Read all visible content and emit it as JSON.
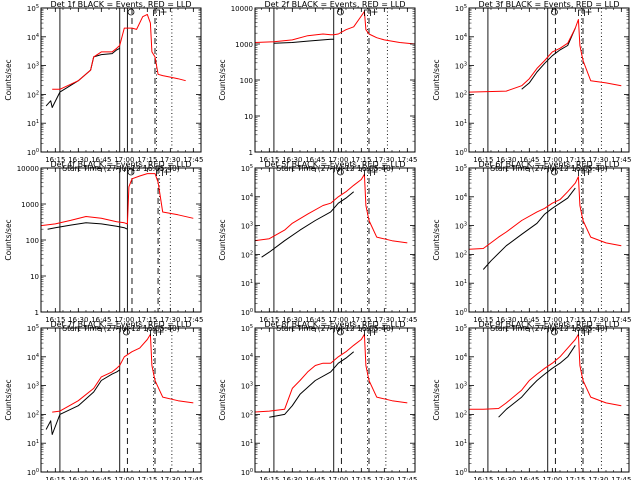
{
  "figure": {
    "colors": {
      "events": "#000000",
      "lld": "#ff0000",
      "axes": "#000000",
      "background": "#ffffff"
    },
    "common": {
      "xlabel": "Start Time (27-Jul-12 16:05:40)",
      "ylabel": "Counts/sec",
      "x_ticks": [
        "16:15",
        "16:30",
        "16:45",
        "17:00",
        "17:15",
        "17:30",
        "17:45"
      ],
      "x_range": [
        "16:05:40",
        "17:50"
      ],
      "ylog": true,
      "grid": false,
      "markers": [
        "o",
        "⊓",
        "+"
      ]
    }
  },
  "chart_data": [
    {
      "type": "line",
      "title": "Det 1f BLACK = Events, RED = LLD",
      "xlabel": "Start Time (27-Jul-12 16:05:40)",
      "ylabel": "Counts/sec",
      "y_ticks": [
        "10^0",
        "10^1",
        "10^2",
        "10^3",
        "10^4",
        "10^5"
      ],
      "ylim": [
        1,
        100000
      ],
      "vlines_solid": [
        "16:18",
        "16:57",
        "17:02"
      ],
      "vlines_dashed": [
        "17:05",
        "17:20"
      ],
      "vlines_dotted": [
        "17:21",
        "17:31"
      ],
      "series": [
        {
          "name": "Events",
          "color": "#000000",
          "x": [
            "16:09",
            "16:12",
            "16:13",
            "16:18",
            "16:30",
            "16:38",
            "16:40",
            "16:45",
            "16:52",
            "16:55",
            "16:57"
          ],
          "y": [
            40,
            60,
            35,
            120,
            300,
            700,
            2000,
            2400,
            2600,
            3500,
            4000
          ]
        },
        {
          "name": "LLD",
          "color": "#ff0000",
          "x": [
            "16:13",
            "16:18",
            "16:30",
            "16:38",
            "16:40",
            "16:45",
            "16:52",
            "16:55",
            "16:57",
            "17:00",
            "17:05",
            "17:08",
            "17:12",
            "17:15",
            "17:17",
            "17:18",
            "17:20",
            "17:22",
            "17:25",
            "17:30",
            "17:35",
            "17:40"
          ],
          "y": [
            150,
            150,
            300,
            700,
            2000,
            3000,
            3000,
            4000,
            5000,
            20000,
            20000,
            18000,
            50000,
            60000,
            30000,
            3000,
            2000,
            500,
            450,
            400,
            350,
            300
          ]
        }
      ]
    },
    {
      "type": "line",
      "title": "Det 2f BLACK = Events, RED = LLD",
      "xlabel": "Start Time (27-Jul-12 16:05:40)",
      "ylabel": "Counts/sec",
      "y_ticks": [
        "1",
        "10",
        "100",
        "1000",
        "10000"
      ],
      "ylim": [
        1,
        10000
      ],
      "vlines_solid": [
        "16:18",
        "16:57"
      ],
      "vlines_dashed": [
        "17:02",
        "17:20"
      ],
      "vlines_dotted": [
        "17:19",
        "17:32"
      ],
      "series": [
        {
          "name": "Events",
          "color": "#000000",
          "x": [
            "16:18",
            "16:30",
            "16:40",
            "16:50",
            "16:55",
            "16:57"
          ],
          "y": [
            1050,
            1100,
            1200,
            1300,
            1350,
            1350
          ]
        },
        {
          "name": "LLD",
          "color": "#ff0000",
          "x": [
            "16:05",
            "16:18",
            "16:30",
            "16:40",
            "16:50",
            "16:55",
            "16:57",
            "17:00",
            "17:05",
            "17:10",
            "17:15",
            "17:17",
            "17:18",
            "17:20",
            "17:25",
            "17:30",
            "17:40",
            "17:50"
          ],
          "y": [
            1100,
            1150,
            1300,
            1700,
            1900,
            1800,
            1800,
            1900,
            2500,
            3000,
            6000,
            8000,
            2500,
            1900,
            1500,
            1300,
            1100,
            1000
          ]
        }
      ]
    },
    {
      "type": "line",
      "title": "Det 3f BLACK = Events, RED = LLD",
      "xlabel": "Start Time (27-Jul-12 16:05:40)",
      "ylabel": "Counts/sec",
      "y_ticks": [
        "10^0",
        "10^1",
        "10^2",
        "10^3",
        "10^4",
        "10^5"
      ],
      "ylim": [
        1,
        100000
      ],
      "vlines_solid": [
        "16:18",
        "16:57"
      ],
      "vlines_dashed": [
        "17:02",
        "17:20"
      ],
      "vlines_dotted": [
        "17:19",
        "17:32"
      ],
      "series": [
        {
          "name": "Events",
          "color": "#000000",
          "x": [
            "16:40",
            "16:45",
            "16:50",
            "16:55",
            "17:00",
            "17:05",
            "17:10",
            "17:15"
          ],
          "y": [
            150,
            250,
            600,
            1200,
            2200,
            3500,
            5000,
            20000
          ]
        },
        {
          "name": "LLD",
          "color": "#ff0000",
          "x": [
            "16:05",
            "16:30",
            "16:40",
            "16:45",
            "16:50",
            "16:55",
            "17:00",
            "17:05",
            "17:10",
            "17:15",
            "17:17",
            "17:18",
            "17:20",
            "17:25",
            "17:35",
            "17:45"
          ],
          "y": [
            120,
            130,
            200,
            350,
            800,
            1500,
            3000,
            4000,
            6000,
            20000,
            40000,
            5000,
            1500,
            300,
            250,
            200
          ]
        }
      ]
    },
    {
      "type": "line",
      "title": "Det 4f BLACK = Events, RED = LLD",
      "xlabel": "Start Time (27-Jul-12 16:05:40)",
      "ylabel": "Counts/sec",
      "y_ticks": [
        "1",
        "10",
        "100",
        "1000",
        "10000"
      ],
      "ylim": [
        1,
        10000
      ],
      "vlines_solid": [
        "16:18",
        "16:57",
        "17:02"
      ],
      "vlines_dashed": [
        "17:05",
        "17:22"
      ],
      "vlines_dotted": [
        "17:23",
        "17:30"
      ],
      "series": [
        {
          "name": "Events",
          "color": "#000000",
          "x": [
            "16:10",
            "16:15",
            "16:25",
            "16:35",
            "16:45",
            "16:55",
            "17:00",
            "17:02"
          ],
          "y": [
            200,
            220,
            260,
            300,
            280,
            240,
            220,
            200
          ]
        },
        {
          "name": "LLD",
          "color": "#ff0000",
          "x": [
            "16:05",
            "16:15",
            "16:25",
            "16:35",
            "16:45",
            "16:55",
            "17:00",
            "17:02",
            "17:03",
            "17:05",
            "17:10",
            "17:15",
            "17:20",
            "17:22",
            "17:25",
            "17:35",
            "17:45"
          ],
          "y": [
            250,
            280,
            350,
            450,
            400,
            320,
            300,
            280,
            3000,
            5000,
            6000,
            7000,
            7000,
            4000,
            600,
            500,
            400
          ]
        }
      ]
    },
    {
      "type": "line",
      "title": "Det 5f BLACK = Events, RED = LLD",
      "xlabel": "Start Time (27-Jul-12 16:05:40)",
      "ylabel": "Counts/sec",
      "y_ticks": [
        "10^0",
        "10^1",
        "10^2",
        "10^3",
        "10^4",
        "10^5"
      ],
      "ylim": [
        1,
        100000
      ],
      "vlines_solid": [
        "16:18",
        "16:57"
      ],
      "vlines_dashed": [
        "17:02",
        "17:20"
      ],
      "vlines_dotted": [
        "17:19",
        "17:31"
      ],
      "series": [
        {
          "name": "Events",
          "color": "#000000",
          "x": [
            "16:10",
            "16:15",
            "16:25",
            "16:35",
            "16:45",
            "16:55",
            "17:00",
            "17:05",
            "17:10"
          ],
          "y": [
            80,
            120,
            300,
            700,
            1500,
            3000,
            6000,
            9000,
            15000
          ]
        },
        {
          "name": "LLD",
          "color": "#ff0000",
          "x": [
            "16:05",
            "16:15",
            "16:25",
            "16:30",
            "16:40",
            "16:50",
            "16:55",
            "17:00",
            "17:05",
            "17:10",
            "17:15",
            "17:17",
            "17:18",
            "17:20",
            "17:25",
            "17:35",
            "17:45"
          ],
          "y": [
            300,
            350,
            700,
            1200,
            2500,
            5000,
            6000,
            10000,
            15000,
            25000,
            40000,
            60000,
            5000,
            1500,
            400,
            300,
            250
          ]
        }
      ]
    },
    {
      "type": "line",
      "title": "Det 6f BLACK = Events, RED = LLD",
      "xlabel": "Start Time (27-Jul-12 16:05:40)",
      "ylabel": "Counts/sec",
      "y_ticks": [
        "10^0",
        "10^1",
        "10^2",
        "10^3",
        "10^4",
        "10^5"
      ],
      "ylim": [
        1,
        100000
      ],
      "vlines_solid": [
        "16:18",
        "16:57"
      ],
      "vlines_dashed": [
        "17:02",
        "17:20"
      ],
      "vlines_dotted": [
        "17:19",
        "17:32"
      ],
      "series": [
        {
          "name": "Events",
          "color": "#000000",
          "x": [
            "16:15",
            "16:20",
            "16:30",
            "16:40",
            "16:50",
            "16:55",
            "17:00",
            "17:05",
            "17:10",
            "17:15"
          ],
          "y": [
            30,
            60,
            200,
            500,
            1200,
            2500,
            4000,
            6000,
            9000,
            20000
          ]
        },
        {
          "name": "LLD",
          "color": "#ff0000",
          "x": [
            "16:05",
            "16:15",
            "16:25",
            "16:30",
            "16:40",
            "16:50",
            "16:55",
            "17:00",
            "17:05",
            "17:10",
            "17:15",
            "17:17",
            "17:18",
            "17:20",
            "17:25",
            "17:35",
            "17:45"
          ],
          "y": [
            150,
            160,
            400,
            600,
            1500,
            3000,
            4000,
            6000,
            8000,
            15000,
            30000,
            50000,
            5000,
            1500,
            400,
            250,
            200
          ]
        }
      ]
    },
    {
      "type": "line",
      "title": "Det 7f BLACK = Events, RED = LLD",
      "xlabel": "Start Time (27-Jul-12 16:05:40)",
      "ylabel": "Counts/sec",
      "y_ticks": [
        "10^0",
        "10^1",
        "10^2",
        "10^3",
        "10^4",
        "10^5"
      ],
      "ylim": [
        1,
        100000
      ],
      "vlines_solid": [
        "16:18",
        "16:57"
      ],
      "vlines_dashed": [
        "17:02",
        "17:20"
      ],
      "vlines_dotted": [
        "17:19",
        "17:31"
      ],
      "series": [
        {
          "name": "Events",
          "color": "#000000",
          "x": [
            "16:09",
            "16:12",
            "16:13",
            "16:18",
            "16:30",
            "16:40",
            "16:45",
            "16:52",
            "16:55",
            "16:57"
          ],
          "y": [
            30,
            60,
            20,
            100,
            200,
            600,
            1500,
            2500,
            3000,
            3500
          ]
        },
        {
          "name": "LLD",
          "color": "#ff0000",
          "x": [
            "16:13",
            "16:18",
            "16:30",
            "16:40",
            "16:45",
            "16:52",
            "16:55",
            "16:57",
            "17:00",
            "17:05",
            "17:10",
            "17:15",
            "17:17",
            "17:18",
            "17:20",
            "17:25",
            "17:35",
            "17:45"
          ],
          "y": [
            120,
            130,
            300,
            800,
            2000,
            3000,
            4000,
            5000,
            10000,
            15000,
            20000,
            40000,
            60000,
            5000,
            1500,
            400,
            300,
            250
          ]
        }
      ]
    },
    {
      "type": "line",
      "title": "Det 8f BLACK = Events, RED = LLD",
      "xlabel": "Start Time (27-Jul-12 16:05:40)",
      "ylabel": "Counts/sec",
      "y_ticks": [
        "10^0",
        "10^1",
        "10^2",
        "10^3",
        "10^4",
        "10^5"
      ],
      "ylim": [
        1,
        100000
      ],
      "vlines_solid": [
        "16:18",
        "16:57"
      ],
      "vlines_dashed": [
        "17:02",
        "17:20"
      ],
      "vlines_dotted": [
        "17:19",
        "17:31"
      ],
      "series": [
        {
          "name": "Events",
          "color": "#000000",
          "x": [
            "16:15",
            "16:25",
            "16:30",
            "16:35",
            "16:45",
            "16:55",
            "17:00",
            "17:05",
            "17:10"
          ],
          "y": [
            80,
            100,
            200,
            500,
            1500,
            3000,
            6000,
            9000,
            15000
          ]
        },
        {
          "name": "LLD",
          "color": "#ff0000",
          "x": [
            "16:05",
            "16:15",
            "16:25",
            "16:30",
            "16:35",
            "16:40",
            "16:45",
            "16:50",
            "16:55",
            "17:00",
            "17:05",
            "17:10",
            "17:15",
            "17:17",
            "17:18",
            "17:20",
            "17:25",
            "17:35",
            "17:45"
          ],
          "y": [
            120,
            130,
            150,
            800,
            1500,
            3000,
            5000,
            6000,
            6000,
            10000,
            15000,
            25000,
            40000,
            60000,
            5000,
            1500,
            400,
            300,
            250
          ]
        }
      ]
    },
    {
      "type": "line",
      "title": "Det 9f BLACK = Events, RED = LLD",
      "xlabel": "Start Time (27-Jul-12 16:05:40)",
      "ylabel": "Counts/sec",
      "y_ticks": [
        "10^0",
        "10^1",
        "10^2",
        "10^3",
        "10^4",
        "10^5"
      ],
      "ylim": [
        1,
        100000
      ],
      "vlines_solid": [
        "16:18",
        "16:57"
      ],
      "vlines_dashed": [
        "17:02",
        "17:20"
      ],
      "vlines_dotted": [
        "17:19",
        "17:32"
      ],
      "series": [
        {
          "name": "Events",
          "color": "#000000",
          "x": [
            "16:25",
            "16:30",
            "16:40",
            "16:45",
            "16:50",
            "16:55",
            "17:00",
            "17:05",
            "17:10",
            "17:15"
          ],
          "y": [
            80,
            150,
            400,
            800,
            1500,
            2500,
            4000,
            6000,
            10000,
            25000
          ]
        },
        {
          "name": "LLD",
          "color": "#ff0000",
          "x": [
            "16:05",
            "16:15",
            "16:25",
            "16:30",
            "16:40",
            "16:45",
            "16:50",
            "16:55",
            "17:00",
            "17:05",
            "17:10",
            "17:15",
            "17:17",
            "17:18",
            "17:20",
            "17:25",
            "17:35",
            "17:45"
          ],
          "y": [
            150,
            150,
            160,
            250,
            700,
            1500,
            2500,
            4000,
            6000,
            10000,
            20000,
            40000,
            60000,
            5000,
            1500,
            400,
            250,
            200
          ]
        }
      ]
    }
  ]
}
